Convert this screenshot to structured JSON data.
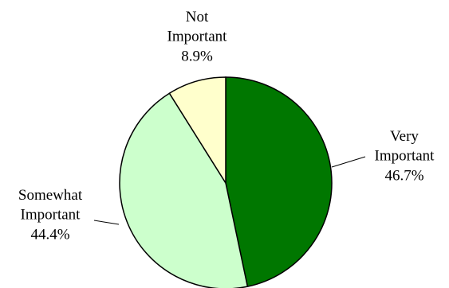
{
  "chart_data": {
    "type": "pie",
    "slices": [
      {
        "label_lines": [
          "Very",
          "Important"
        ],
        "value_text": "46.7%",
        "value": 46.7,
        "color": "#007700"
      },
      {
        "label_lines": [
          "Somewhat",
          "Important"
        ],
        "value_text": "44.4%",
        "value": 44.4,
        "color": "#ccffcc"
      },
      {
        "label_lines": [
          "Not",
          "Important"
        ],
        "value_text": "8.9%",
        "value": 8.9,
        "color": "#ffffcc"
      }
    ],
    "start_angle": "12 o'clock",
    "direction": "clockwise",
    "border_color": "#000000",
    "title": ""
  }
}
